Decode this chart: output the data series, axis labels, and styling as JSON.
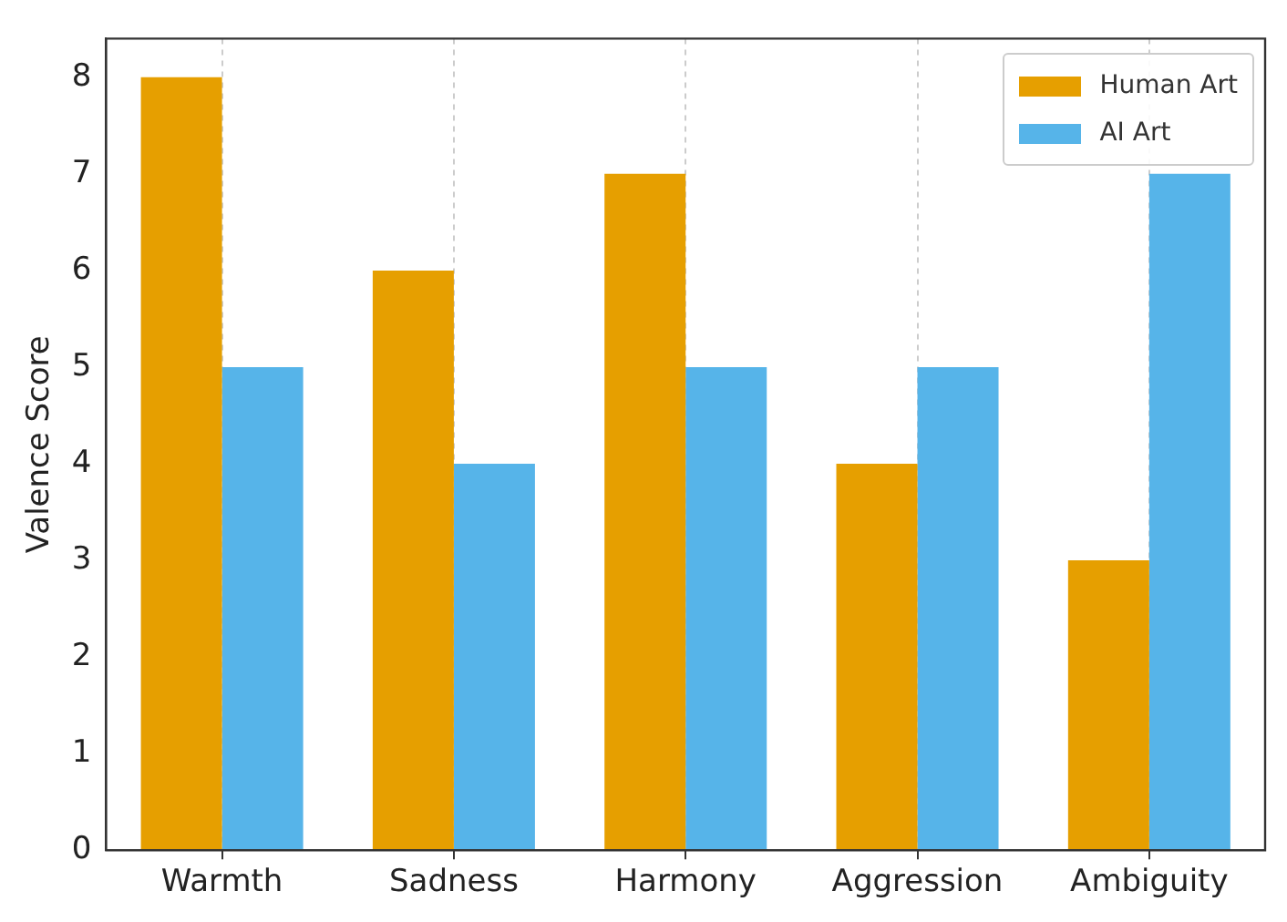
{
  "chart_data": {
    "type": "bar",
    "ylabel": "Valence Score",
    "categories": [
      "Warmth",
      "Sadness",
      "Harmony",
      "Aggression",
      "Ambiguity"
    ],
    "series": [
      {
        "name": "Human Art",
        "color": "#e69f00",
        "values": [
          8,
          6,
          7,
          4,
          3
        ]
      },
      {
        "name": "AI Art",
        "color": "#56b4e9",
        "values": [
          5,
          4,
          5,
          5,
          7
        ]
      }
    ],
    "ylim": [
      0,
      8.4
    ],
    "yticks": [
      0,
      1,
      2,
      3,
      4,
      5,
      6,
      7,
      8
    ],
    "grid": "x",
    "legend": "top right"
  }
}
